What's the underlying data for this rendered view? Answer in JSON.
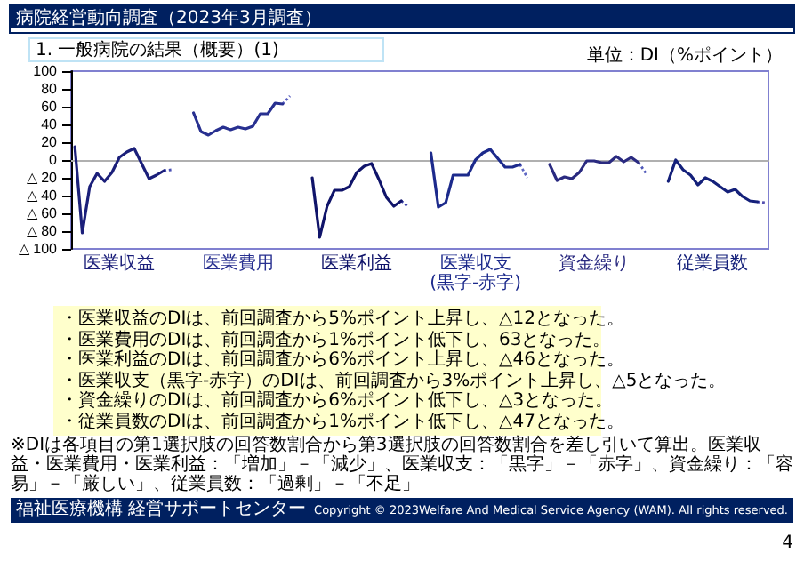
{
  "chart_data": {
    "type": "line",
    "title": "病院経営動向調査（2023年3月調査）",
    "subtitle": "1. 一般病院の結果（概要）(1)",
    "ylabel": "単位：DI（%ポイント）",
    "categories": [
      null,
      null,
      null,
      null,
      null,
      null,
      null,
      null,
      null,
      null,
      null,
      null,
      null,
      null,
      null,
      null,
      null,
      null,
      null,
      null,
      null,
      null,
      null,
      null,
      null,
      null,
      null,
      null,
      null,
      null,
      null,
      null,
      null,
      null,
      null,
      null,
      null,
      null,
      null,
      null,
      null,
      null,
      null,
      null,
      null,
      null,
      null,
      null,
      null,
      null,
      null,
      null,
      null,
      null,
      null,
      null,
      null,
      null,
      null,
      null,
      null,
      null,
      null,
      null,
      null,
      null,
      null,
      null,
      null,
      null,
      null,
      null,
      null,
      null,
      null,
      null,
      null,
      null,
      null,
      null,
      null,
      null,
      null,
      null,
      null,
      null,
      null,
      null,
      null,
      null,
      null,
      null,
      null,
      null
    ],
    "ylim": [
      -100,
      100
    ],
    "yticks": [
      100,
      80,
      60,
      40,
      20,
      0,
      {
        "value": -20,
        "label": "△ 20"
      },
      {
        "value": -40,
        "label": "△ 40"
      },
      {
        "value": -60,
        "label": "△ 60"
      },
      {
        "value": -80,
        "label": "△ 80"
      },
      {
        "value": -100,
        "label": "△ 100"
      }
    ],
    "marker": "none",
    "legend": false,
    "series": [
      {
        "name": "医業収益",
        "color": "#1b1f7a",
        "line_style": "solid",
        "values": [
          15,
          -82,
          -30,
          -15,
          -24,
          -14,
          3,
          9,
          13,
          -4,
          -21,
          -17,
          -12,
          null,
          null,
          null,
          null,
          null,
          null,
          null,
          null,
          null,
          null,
          null,
          null,
          null,
          null,
          null,
          null,
          null,
          null,
          null,
          null,
          null,
          null,
          null,
          null,
          null,
          null,
          null,
          null,
          null,
          null,
          null,
          null,
          null,
          null,
          null,
          null,
          null,
          null,
          null,
          null,
          null,
          null,
          null,
          null,
          null,
          null,
          null,
          null,
          null,
          null,
          null,
          null,
          null,
          null,
          null,
          null,
          null,
          null,
          null,
          null,
          null,
          null,
          null,
          null,
          null,
          null,
          null,
          null,
          null,
          null,
          null,
          null,
          null,
          null,
          null,
          null,
          null,
          null,
          null,
          null,
          null
        ]
      },
      {
        "color": "#4a50b4",
        "line_style": "dotted",
        "values": [
          null,
          null,
          null,
          null,
          null,
          null,
          null,
          null,
          null,
          null,
          null,
          null,
          -12,
          -11,
          null,
          null,
          null,
          null,
          null,
          null,
          null,
          null,
          null,
          null,
          null,
          null,
          null,
          null,
          null,
          null,
          null,
          null,
          null,
          null,
          null,
          null,
          null,
          null,
          null,
          null,
          null,
          null,
          null,
          null,
          null,
          null,
          null,
          null,
          null,
          null,
          null,
          null,
          null,
          null,
          null,
          null,
          null,
          null,
          null,
          null,
          null,
          null,
          null,
          null,
          null,
          null,
          null,
          null,
          null,
          null,
          null,
          null,
          null,
          null,
          null,
          null,
          null,
          null,
          null,
          null,
          null,
          null,
          null,
          null,
          null,
          null,
          null,
          null,
          null,
          null,
          null,
          null,
          null,
          null
        ]
      },
      {
        "name": "医業費用",
        "color": "#283090",
        "line_style": "solid",
        "values": [
          null,
          null,
          null,
          null,
          null,
          null,
          null,
          null,
          null,
          null,
          null,
          null,
          null,
          null,
          null,
          null,
          53,
          32,
          28,
          33,
          37,
          34,
          37,
          35,
          38,
          52,
          52,
          64,
          63,
          null,
          null,
          null,
          null,
          null,
          null,
          null,
          null,
          null,
          null,
          null,
          null,
          null,
          null,
          null,
          null,
          null,
          null,
          null,
          null,
          null,
          null,
          null,
          null,
          null,
          null,
          null,
          null,
          null,
          null,
          null,
          null,
          null,
          null,
          null,
          null,
          null,
          null,
          null,
          null,
          null,
          null,
          null,
          null,
          null,
          null,
          null,
          null,
          null,
          null,
          null,
          null,
          null,
          null,
          null,
          null,
          null,
          null,
          null,
          null,
          null,
          null,
          null,
          null,
          null
        ]
      },
      {
        "color": "#5a60c0",
        "line_style": "dotted",
        "values": [
          null,
          null,
          null,
          null,
          null,
          null,
          null,
          null,
          null,
          null,
          null,
          null,
          null,
          null,
          null,
          null,
          null,
          null,
          null,
          null,
          null,
          null,
          null,
          null,
          null,
          null,
          null,
          null,
          63,
          72,
          null,
          null,
          null,
          null,
          null,
          null,
          null,
          null,
          null,
          null,
          null,
          null,
          null,
          null,
          null,
          null,
          null,
          null,
          null,
          null,
          null,
          null,
          null,
          null,
          null,
          null,
          null,
          null,
          null,
          null,
          null,
          null,
          null,
          null,
          null,
          null,
          null,
          null,
          null,
          null,
          null,
          null,
          null,
          null,
          null,
          null,
          null,
          null,
          null,
          null,
          null,
          null,
          null,
          null,
          null,
          null,
          null,
          null,
          null,
          null,
          null,
          null,
          null,
          null
        ]
      },
      {
        "name": "医業利益",
        "color": "#10146a",
        "line_style": "solid",
        "values": [
          null,
          null,
          null,
          null,
          null,
          null,
          null,
          null,
          null,
          null,
          null,
          null,
          null,
          null,
          null,
          null,
          null,
          null,
          null,
          null,
          null,
          null,
          null,
          null,
          null,
          null,
          null,
          null,
          null,
          null,
          null,
          null,
          -20,
          -87,
          -52,
          -34,
          -34,
          -30,
          -14,
          -7,
          -4,
          -22,
          -42,
          -52,
          -46,
          null,
          null,
          null,
          null,
          null,
          null,
          null,
          null,
          null,
          null,
          null,
          null,
          null,
          null,
          null,
          null,
          null,
          null,
          null,
          null,
          null,
          null,
          null,
          null,
          null,
          null,
          null,
          null,
          null,
          null,
          null,
          null,
          null,
          null,
          null,
          null,
          null,
          null,
          null,
          null,
          null,
          null,
          null,
          null,
          null,
          null,
          null,
          null,
          null
        ]
      },
      {
        "color": "#3c42a8",
        "line_style": "dotted",
        "values": [
          null,
          null,
          null,
          null,
          null,
          null,
          null,
          null,
          null,
          null,
          null,
          null,
          null,
          null,
          null,
          null,
          null,
          null,
          null,
          null,
          null,
          null,
          null,
          null,
          null,
          null,
          null,
          null,
          null,
          null,
          null,
          null,
          null,
          null,
          null,
          null,
          null,
          null,
          null,
          null,
          null,
          null,
          null,
          null,
          -46,
          -53,
          null,
          null,
          null,
          null,
          null,
          null,
          null,
          null,
          null,
          null,
          null,
          null,
          null,
          null,
          null,
          null,
          null,
          null,
          null,
          null,
          null,
          null,
          null,
          null,
          null,
          null,
          null,
          null,
          null,
          null,
          null,
          null,
          null,
          null,
          null,
          null,
          null,
          null,
          null,
          null,
          null,
          null,
          null,
          null,
          null,
          null,
          null,
          null
        ]
      },
      {
        "name": "医業収支\n(黒字-赤字)",
        "color": "#1c2a8c",
        "line_style": "solid",
        "values": [
          null,
          null,
          null,
          null,
          null,
          null,
          null,
          null,
          null,
          null,
          null,
          null,
          null,
          null,
          null,
          null,
          null,
          null,
          null,
          null,
          null,
          null,
          null,
          null,
          null,
          null,
          null,
          null,
          null,
          null,
          null,
          null,
          null,
          null,
          null,
          null,
          null,
          null,
          null,
          null,
          null,
          null,
          null,
          null,
          null,
          null,
          null,
          null,
          8,
          -53,
          -48,
          -17,
          -17,
          -17,
          0,
          8,
          12,
          2,
          -8,
          -8,
          -5,
          null,
          null,
          null,
          null,
          null,
          null,
          null,
          null,
          null,
          null,
          null,
          null,
          null,
          null,
          null,
          null,
          null,
          null,
          null,
          null,
          null,
          null,
          null,
          null,
          null,
          null,
          null,
          null,
          null,
          null,
          null,
          null,
          null
        ]
      },
      {
        "color": "#6068c4",
        "line_style": "dotted",
        "values": [
          null,
          null,
          null,
          null,
          null,
          null,
          null,
          null,
          null,
          null,
          null,
          null,
          null,
          null,
          null,
          null,
          null,
          null,
          null,
          null,
          null,
          null,
          null,
          null,
          null,
          null,
          null,
          null,
          null,
          null,
          null,
          null,
          null,
          null,
          null,
          null,
          null,
          null,
          null,
          null,
          null,
          null,
          null,
          null,
          null,
          null,
          null,
          null,
          null,
          null,
          null,
          null,
          null,
          null,
          null,
          null,
          null,
          null,
          null,
          null,
          -5,
          -20,
          null,
          null,
          null,
          null,
          null,
          null,
          null,
          null,
          null,
          null,
          null,
          null,
          null,
          null,
          null,
          null,
          null,
          null,
          null,
          null,
          null,
          null,
          null,
          null,
          null,
          null,
          null,
          null,
          null,
          null,
          null,
          null
        ]
      },
      {
        "name": "資金繰り",
        "color": "#2a2a80",
        "line_style": "solid",
        "values": [
          null,
          null,
          null,
          null,
          null,
          null,
          null,
          null,
          null,
          null,
          null,
          null,
          null,
          null,
          null,
          null,
          null,
          null,
          null,
          null,
          null,
          null,
          null,
          null,
          null,
          null,
          null,
          null,
          null,
          null,
          null,
          null,
          null,
          null,
          null,
          null,
          null,
          null,
          null,
          null,
          null,
          null,
          null,
          null,
          null,
          null,
          null,
          null,
          null,
          null,
          null,
          null,
          null,
          null,
          null,
          null,
          null,
          null,
          null,
          null,
          null,
          null,
          null,
          null,
          -5,
          -23,
          -19,
          -21,
          -14,
          -1,
          -1,
          -3,
          -3,
          4,
          -2,
          3,
          -3,
          null,
          null,
          null,
          null,
          null,
          null,
          null,
          null,
          null,
          null,
          null,
          null,
          null,
          null,
          null,
          null,
          null
        ]
      },
      {
        "color": "#4e58b8",
        "line_style": "dotted",
        "values": [
          null,
          null,
          null,
          null,
          null,
          null,
          null,
          null,
          null,
          null,
          null,
          null,
          null,
          null,
          null,
          null,
          null,
          null,
          null,
          null,
          null,
          null,
          null,
          null,
          null,
          null,
          null,
          null,
          null,
          null,
          null,
          null,
          null,
          null,
          null,
          null,
          null,
          null,
          null,
          null,
          null,
          null,
          null,
          null,
          null,
          null,
          null,
          null,
          null,
          null,
          null,
          null,
          null,
          null,
          null,
          null,
          null,
          null,
          null,
          null,
          null,
          null,
          null,
          null,
          null,
          null,
          null,
          null,
          null,
          null,
          null,
          null,
          null,
          null,
          null,
          null,
          -3,
          -15,
          null,
          null,
          null,
          null,
          null,
          null,
          null,
          null,
          null,
          null,
          null,
          null,
          null,
          null,
          null,
          null
        ]
      },
      {
        "name": "従業員数",
        "color": "#14207a",
        "line_style": "solid",
        "values": [
          null,
          null,
          null,
          null,
          null,
          null,
          null,
          null,
          null,
          null,
          null,
          null,
          null,
          null,
          null,
          null,
          null,
          null,
          null,
          null,
          null,
          null,
          null,
          null,
          null,
          null,
          null,
          null,
          null,
          null,
          null,
          null,
          null,
          null,
          null,
          null,
          null,
          null,
          null,
          null,
          null,
          null,
          null,
          null,
          null,
          null,
          null,
          null,
          null,
          null,
          null,
          null,
          null,
          null,
          null,
          null,
          null,
          null,
          null,
          null,
          null,
          null,
          null,
          null,
          null,
          null,
          null,
          null,
          null,
          null,
          null,
          null,
          null,
          null,
          null,
          null,
          null,
          null,
          null,
          null,
          -24,
          0,
          -11,
          -17,
          -28,
          -20,
          -24,
          -30,
          -36,
          -33,
          -41,
          -46,
          -47,
          null
        ]
      },
      {
        "color": "#5450b0",
        "line_style": "dotted",
        "values": [
          null,
          null,
          null,
          null,
          null,
          null,
          null,
          null,
          null,
          null,
          null,
          null,
          null,
          null,
          null,
          null,
          null,
          null,
          null,
          null,
          null,
          null,
          null,
          null,
          null,
          null,
          null,
          null,
          null,
          null,
          null,
          null,
          null,
          null,
          null,
          null,
          null,
          null,
          null,
          null,
          null,
          null,
          null,
          null,
          null,
          null,
          null,
          null,
          null,
          null,
          null,
          null,
          null,
          null,
          null,
          null,
          null,
          null,
          null,
          null,
          null,
          null,
          null,
          null,
          null,
          null,
          null,
          null,
          null,
          null,
          null,
          null,
          null,
          null,
          null,
          null,
          null,
          null,
          null,
          null,
          null,
          null,
          null,
          null,
          null,
          null,
          null,
          null,
          null,
          null,
          null,
          null,
          -47,
          -48
        ]
      }
    ],
    "annotations": [
      "・医業収益のDIは、前回調査から5%ポイント上昇し、△12となった。",
      "・医業費用のDIは、前回調査から1%ポイント低下し、63となった。",
      "・医業利益のDIは、前回調査から6%ポイント上昇し、△46となった。",
      "・医業収支（黒字-赤字）のDIは、前回調査から3%ポイント上昇し、△5となった。",
      "・資金繰りのDIは、前回調査から6%ポイント低下し、△3となった。",
      "・従業員数のDIは、前回調査から1%ポイント低下し、△47となった。",
      "※DIは各項目の第1選択肢の回答数割合から第3選択肢の回答数割合を差し引いて算出。医業収益・医業費用・医業利益：「増加」－「減少」、医業収支：「黒字」－「赤字」、資金繰り：「容易」－「厳しい」、従業員数：「過剰」－「不足」",
      "福祉医療機構 経営サポートセンター",
      "Copyright © 2023Welfare And Medical Service Agency (WAM). All rights reserved.",
      "4"
    ]
  }
}
